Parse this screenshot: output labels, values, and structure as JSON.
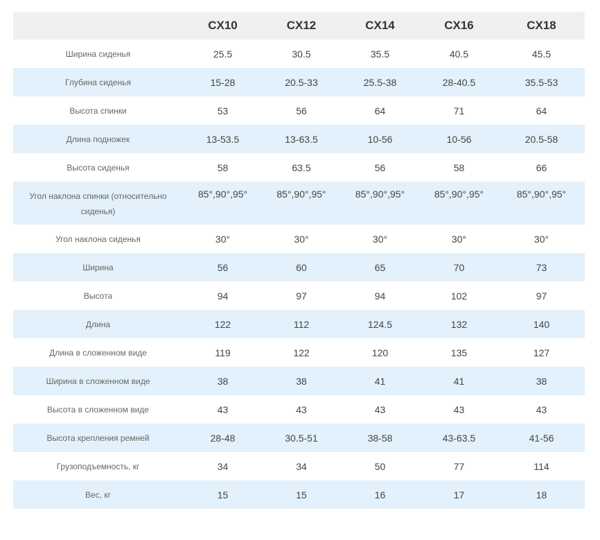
{
  "table": {
    "columns": [
      "",
      "CX10",
      "CX12",
      "CX14",
      "CX16",
      "CX18"
    ],
    "rows": [
      {
        "label": "Ширина сиденья",
        "values": [
          "25.5",
          "30.5",
          "35.5",
          "40.5",
          "45.5"
        ]
      },
      {
        "label": "Глубина сиденья",
        "values": [
          "15-28",
          "20.5-33",
          "25.5-38",
          "28-40.5",
          "35.5-53"
        ]
      },
      {
        "label": "Высота спинки",
        "values": [
          "53",
          "56",
          "64",
          "71",
          "64"
        ]
      },
      {
        "label": "Длина подножек",
        "values": [
          "13-53.5",
          "13-63.5",
          "10-56",
          "10-56",
          "20.5-58"
        ]
      },
      {
        "label": "Высота сиденья",
        "values": [
          "58",
          "63.5",
          "56",
          "58",
          "66"
        ]
      },
      {
        "label": "Угол наклона спинки (относительно сиденья)",
        "values": [
          "85°,90°,95°",
          "85°,90°,95°",
          "85°,90°,95°",
          "85°,90°,95°",
          "85°,90°,95°"
        ]
      },
      {
        "label": "Угол наклона сиденья",
        "values": [
          "30°",
          "30°",
          "30°",
          "30°",
          "30°"
        ]
      },
      {
        "label": "Ширина",
        "values": [
          "56",
          "60",
          "65",
          "70",
          "73"
        ]
      },
      {
        "label": "Высота",
        "values": [
          "94",
          "97",
          "94",
          "102",
          "97"
        ]
      },
      {
        "label": "Длина",
        "values": [
          "122",
          "112",
          "124.5",
          "132",
          "140"
        ]
      },
      {
        "label": "Длина в сложенном виде",
        "values": [
          "119",
          "122",
          "120",
          "135",
          "127"
        ]
      },
      {
        "label": "Ширина в сложенном виде",
        "values": [
          "38",
          "38",
          "41",
          "41",
          "38"
        ]
      },
      {
        "label": "Высота в сложенном виде",
        "values": [
          "43",
          "43",
          "43",
          "43",
          "43"
        ]
      },
      {
        "label": "Высота крепления ремней",
        "values": [
          "28-48",
          "30.5-51",
          "38-58",
          "43-63.5",
          "41-56"
        ]
      },
      {
        "label": "Грузоподъемность, кг",
        "values": [
          "34",
          "34",
          "50",
          "77",
          "114"
        ]
      },
      {
        "label": "Вес, кг",
        "values": [
          "15",
          "15",
          "16",
          "17",
          "18"
        ]
      }
    ]
  }
}
